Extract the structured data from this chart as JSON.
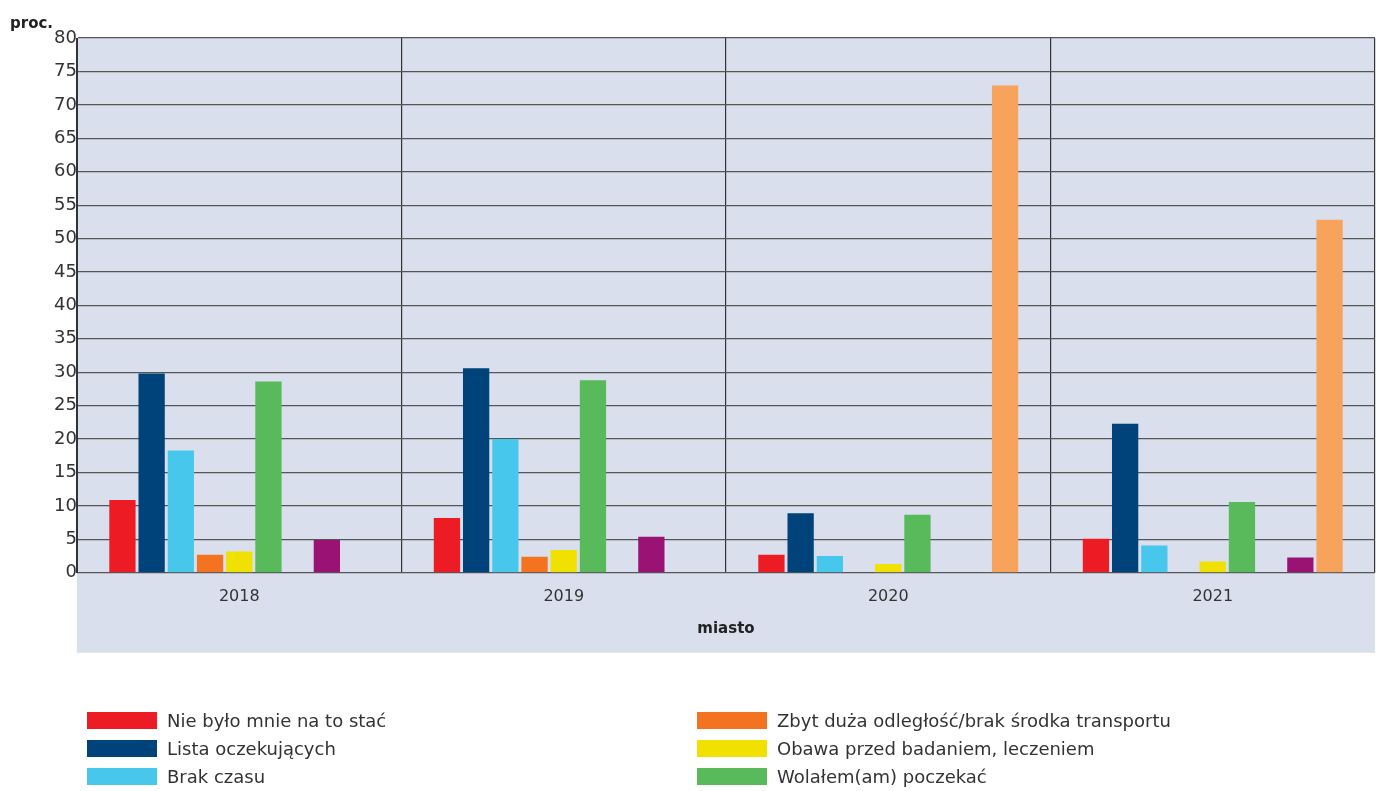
{
  "chart_data": {
    "type": "bar",
    "ylabel": "proc.",
    "xlabel": "miasto",
    "categories": [
      "2018",
      "2019",
      "2020",
      "2021"
    ],
    "series": [
      {
        "name": "Nie było mnie na to stać",
        "color": "#ed1c24",
        "values": [
          10.9,
          8.2,
          2.7,
          5.1
        ]
      },
      {
        "name": "Lista oczekujących",
        "color": "#00427a",
        "values": [
          29.8,
          30.6,
          8.9,
          22.3
        ]
      },
      {
        "name": "Brak czasu",
        "color": "#48c7ec",
        "values": [
          18.3,
          20.0,
          2.5,
          4.1
        ]
      },
      {
        "name": "Zbyt duża odległość/brak środka transportu",
        "color": "#f37321",
        "values": [
          2.7,
          2.4,
          0,
          0
        ]
      },
      {
        "name": "Obawa przed badaniem, leczeniem",
        "color": "#f0e100",
        "values": [
          3.2,
          3.4,
          1.3,
          1.7
        ]
      },
      {
        "name": "Wolałem(am) poczekać",
        "color": "#58ba5b",
        "values": [
          28.6,
          28.8,
          8.7,
          10.6
        ]
      },
      {
        "color": "#5a4a3a",
        "values": [
          0,
          0,
          0,
          0
        ]
      },
      {
        "color": "#9b1275",
        "values": [
          4.9,
          5.4,
          0,
          2.3
        ]
      },
      {
        "color": "#f7a35c",
        "values": [
          0,
          0,
          72.9,
          52.8
        ]
      }
    ],
    "ylim": [
      0,
      80
    ],
    "yticks": [
      0,
      5,
      10,
      15,
      20,
      25,
      30,
      35,
      40,
      45,
      50,
      55,
      60,
      65,
      70,
      75,
      80
    ],
    "grid": true,
    "legend": "bottom"
  }
}
